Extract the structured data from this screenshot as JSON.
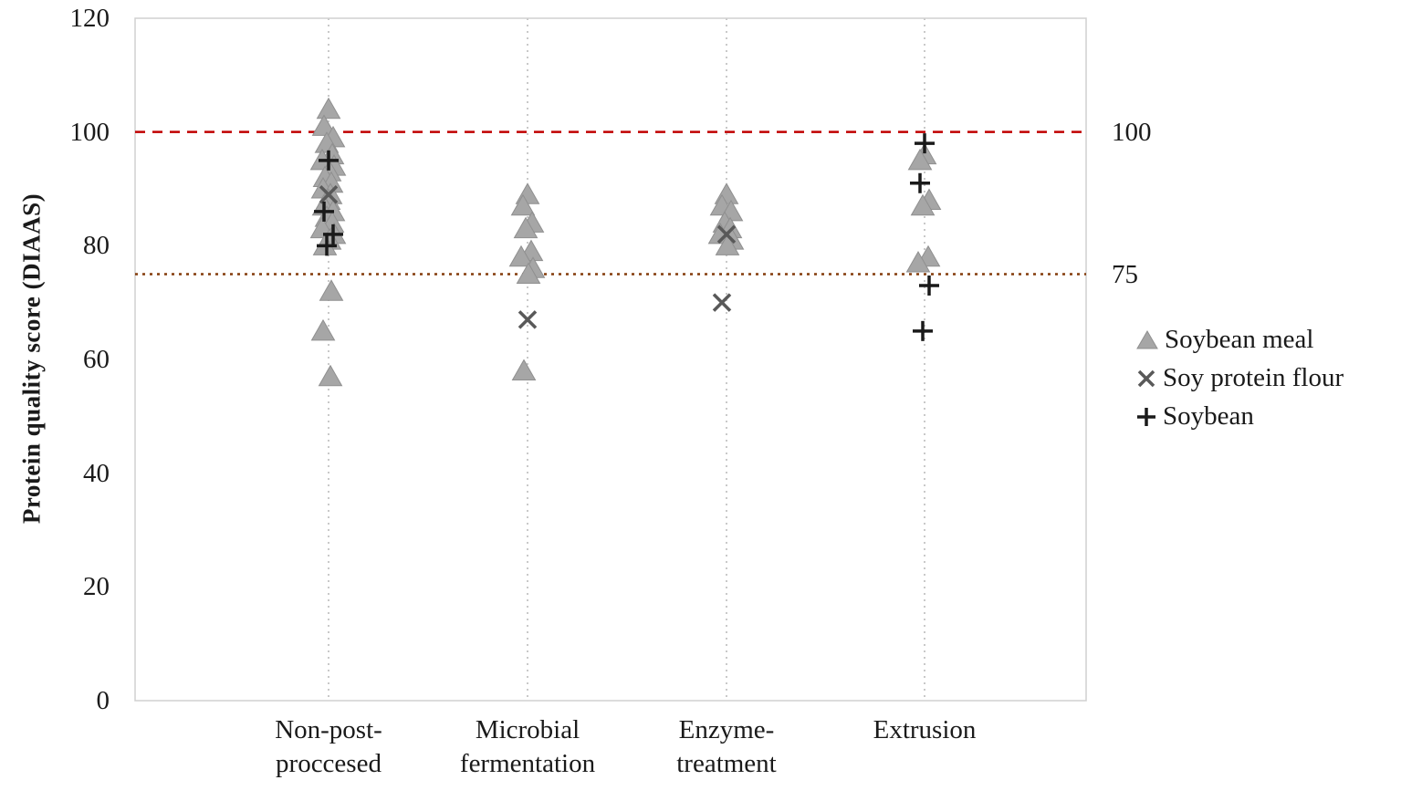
{
  "chart_data": {
    "type": "scatter",
    "title": "",
    "ylabel": "Protein quality score (DIAAS)",
    "xlabel": "",
    "ylim": [
      0,
      120
    ],
    "yticks": [
      0,
      20,
      40,
      60,
      80,
      100,
      120
    ],
    "grid": "vertical-dotted",
    "legend_position": "right",
    "categories": [
      {
        "id": "non-post-proccesed",
        "label_lines": [
          "Non-post-",
          "proccesed"
        ]
      },
      {
        "id": "microbial-fermentation",
        "label_lines": [
          "Microbial",
          "fermentation"
        ]
      },
      {
        "id": "enzyme-treatment",
        "label_lines": [
          "Enzyme-",
          "treatment"
        ]
      },
      {
        "id": "extrusion",
        "label_lines": [
          "Extrusion"
        ]
      }
    ],
    "series": [
      {
        "name": "Soybean meal",
        "marker": "triangle",
        "color": "#a6a6a6",
        "values_by_category": [
          [
            104,
            101,
            99,
            98,
            96,
            95,
            94,
            93,
            92,
            91,
            90,
            89,
            88,
            87,
            86,
            85,
            84,
            83,
            82,
            81,
            80,
            72,
            65,
            57
          ],
          [
            89,
            87,
            84,
            83,
            79,
            78,
            76,
            75,
            58
          ],
          [
            89,
            87,
            86,
            84,
            83,
            82,
            81,
            80
          ],
          [
            96,
            95,
            88,
            87,
            78,
            77
          ]
        ]
      },
      {
        "name": "Soy protein flour",
        "marker": "x",
        "color": "#595959",
        "values_by_category": [
          [
            89
          ],
          [
            67
          ],
          [
            82,
            70
          ],
          []
        ]
      },
      {
        "name": "Soybean",
        "marker": "plus",
        "color": "#1a1a1a",
        "values_by_category": [
          [
            95,
            86,
            82,
            80
          ],
          [],
          [],
          [
            98,
            91,
            73,
            65
          ]
        ]
      }
    ],
    "reference_lines": [
      {
        "value": 100,
        "label": "100",
        "color": "#c00000",
        "dash": "11 8"
      },
      {
        "value": 75,
        "label": "75",
        "color": "#843c0b",
        "dash": "3 5"
      }
    ]
  }
}
